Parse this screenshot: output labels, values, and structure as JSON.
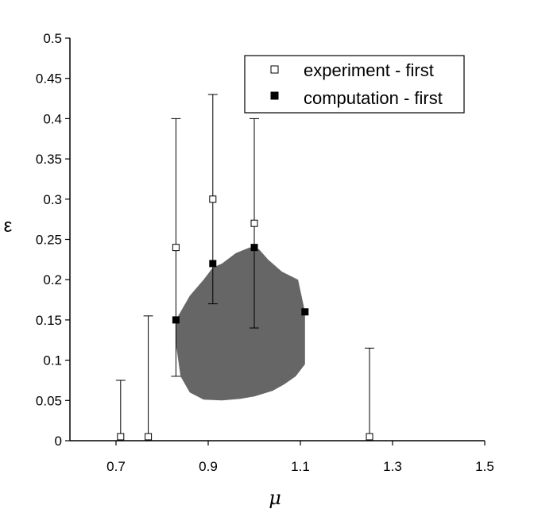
{
  "chart_data": {
    "type": "scatter",
    "xlabel": "μ",
    "ylabel": "ε",
    "xlim": [
      0.6,
      1.5
    ],
    "ylim": [
      0,
      0.5
    ],
    "x_ticks": [
      "0.7",
      "0.9",
      "1.1",
      "1.3",
      "1.5"
    ],
    "y_ticks": [
      "0",
      "0.05",
      "0.1",
      "0.15",
      "0.2",
      "0.25",
      "0.3",
      "0.35",
      "0.4",
      "0.45",
      "0.5"
    ],
    "legend_position": "top-right",
    "series": [
      {
        "name": "experiment - first",
        "marker": "open-square",
        "x": [
          0.71,
          0.77,
          0.83,
          0.91,
          1.0,
          1.25
        ],
        "y": [
          0.005,
          0.005,
          0.24,
          0.3,
          0.27,
          0.005
        ],
        "y_low": [
          0.0,
          0.0,
          0.08,
          0.17,
          0.14,
          0.0
        ],
        "y_high": [
          0.075,
          0.155,
          0.4,
          0.43,
          0.4,
          0.115
        ]
      },
      {
        "name": "computation - first",
        "marker": "filled-square",
        "x": [
          0.83,
          0.91,
          1.0,
          1.11
        ],
        "y": [
          0.15,
          0.22,
          0.24,
          0.16
        ]
      }
    ],
    "region": {
      "color": "#666666",
      "boundary": [
        [
          0.83,
          0.15
        ],
        [
          0.86,
          0.18
        ],
        [
          0.89,
          0.2
        ],
        [
          0.91,
          0.215
        ],
        [
          0.93,
          0.22
        ],
        [
          0.96,
          0.233
        ],
        [
          0.99,
          0.24
        ],
        [
          1.01,
          0.238
        ],
        [
          1.03,
          0.225
        ],
        [
          1.06,
          0.21
        ],
        [
          1.095,
          0.2
        ],
        [
          1.11,
          0.16
        ],
        [
          1.11,
          0.095
        ],
        [
          1.09,
          0.08
        ],
        [
          1.065,
          0.07
        ],
        [
          1.04,
          0.062
        ],
        [
          1.0,
          0.055
        ],
        [
          0.97,
          0.052
        ],
        [
          0.93,
          0.05
        ],
        [
          0.89,
          0.051
        ],
        [
          0.86,
          0.06
        ],
        [
          0.84,
          0.08
        ],
        [
          0.83,
          0.12
        ]
      ]
    }
  }
}
